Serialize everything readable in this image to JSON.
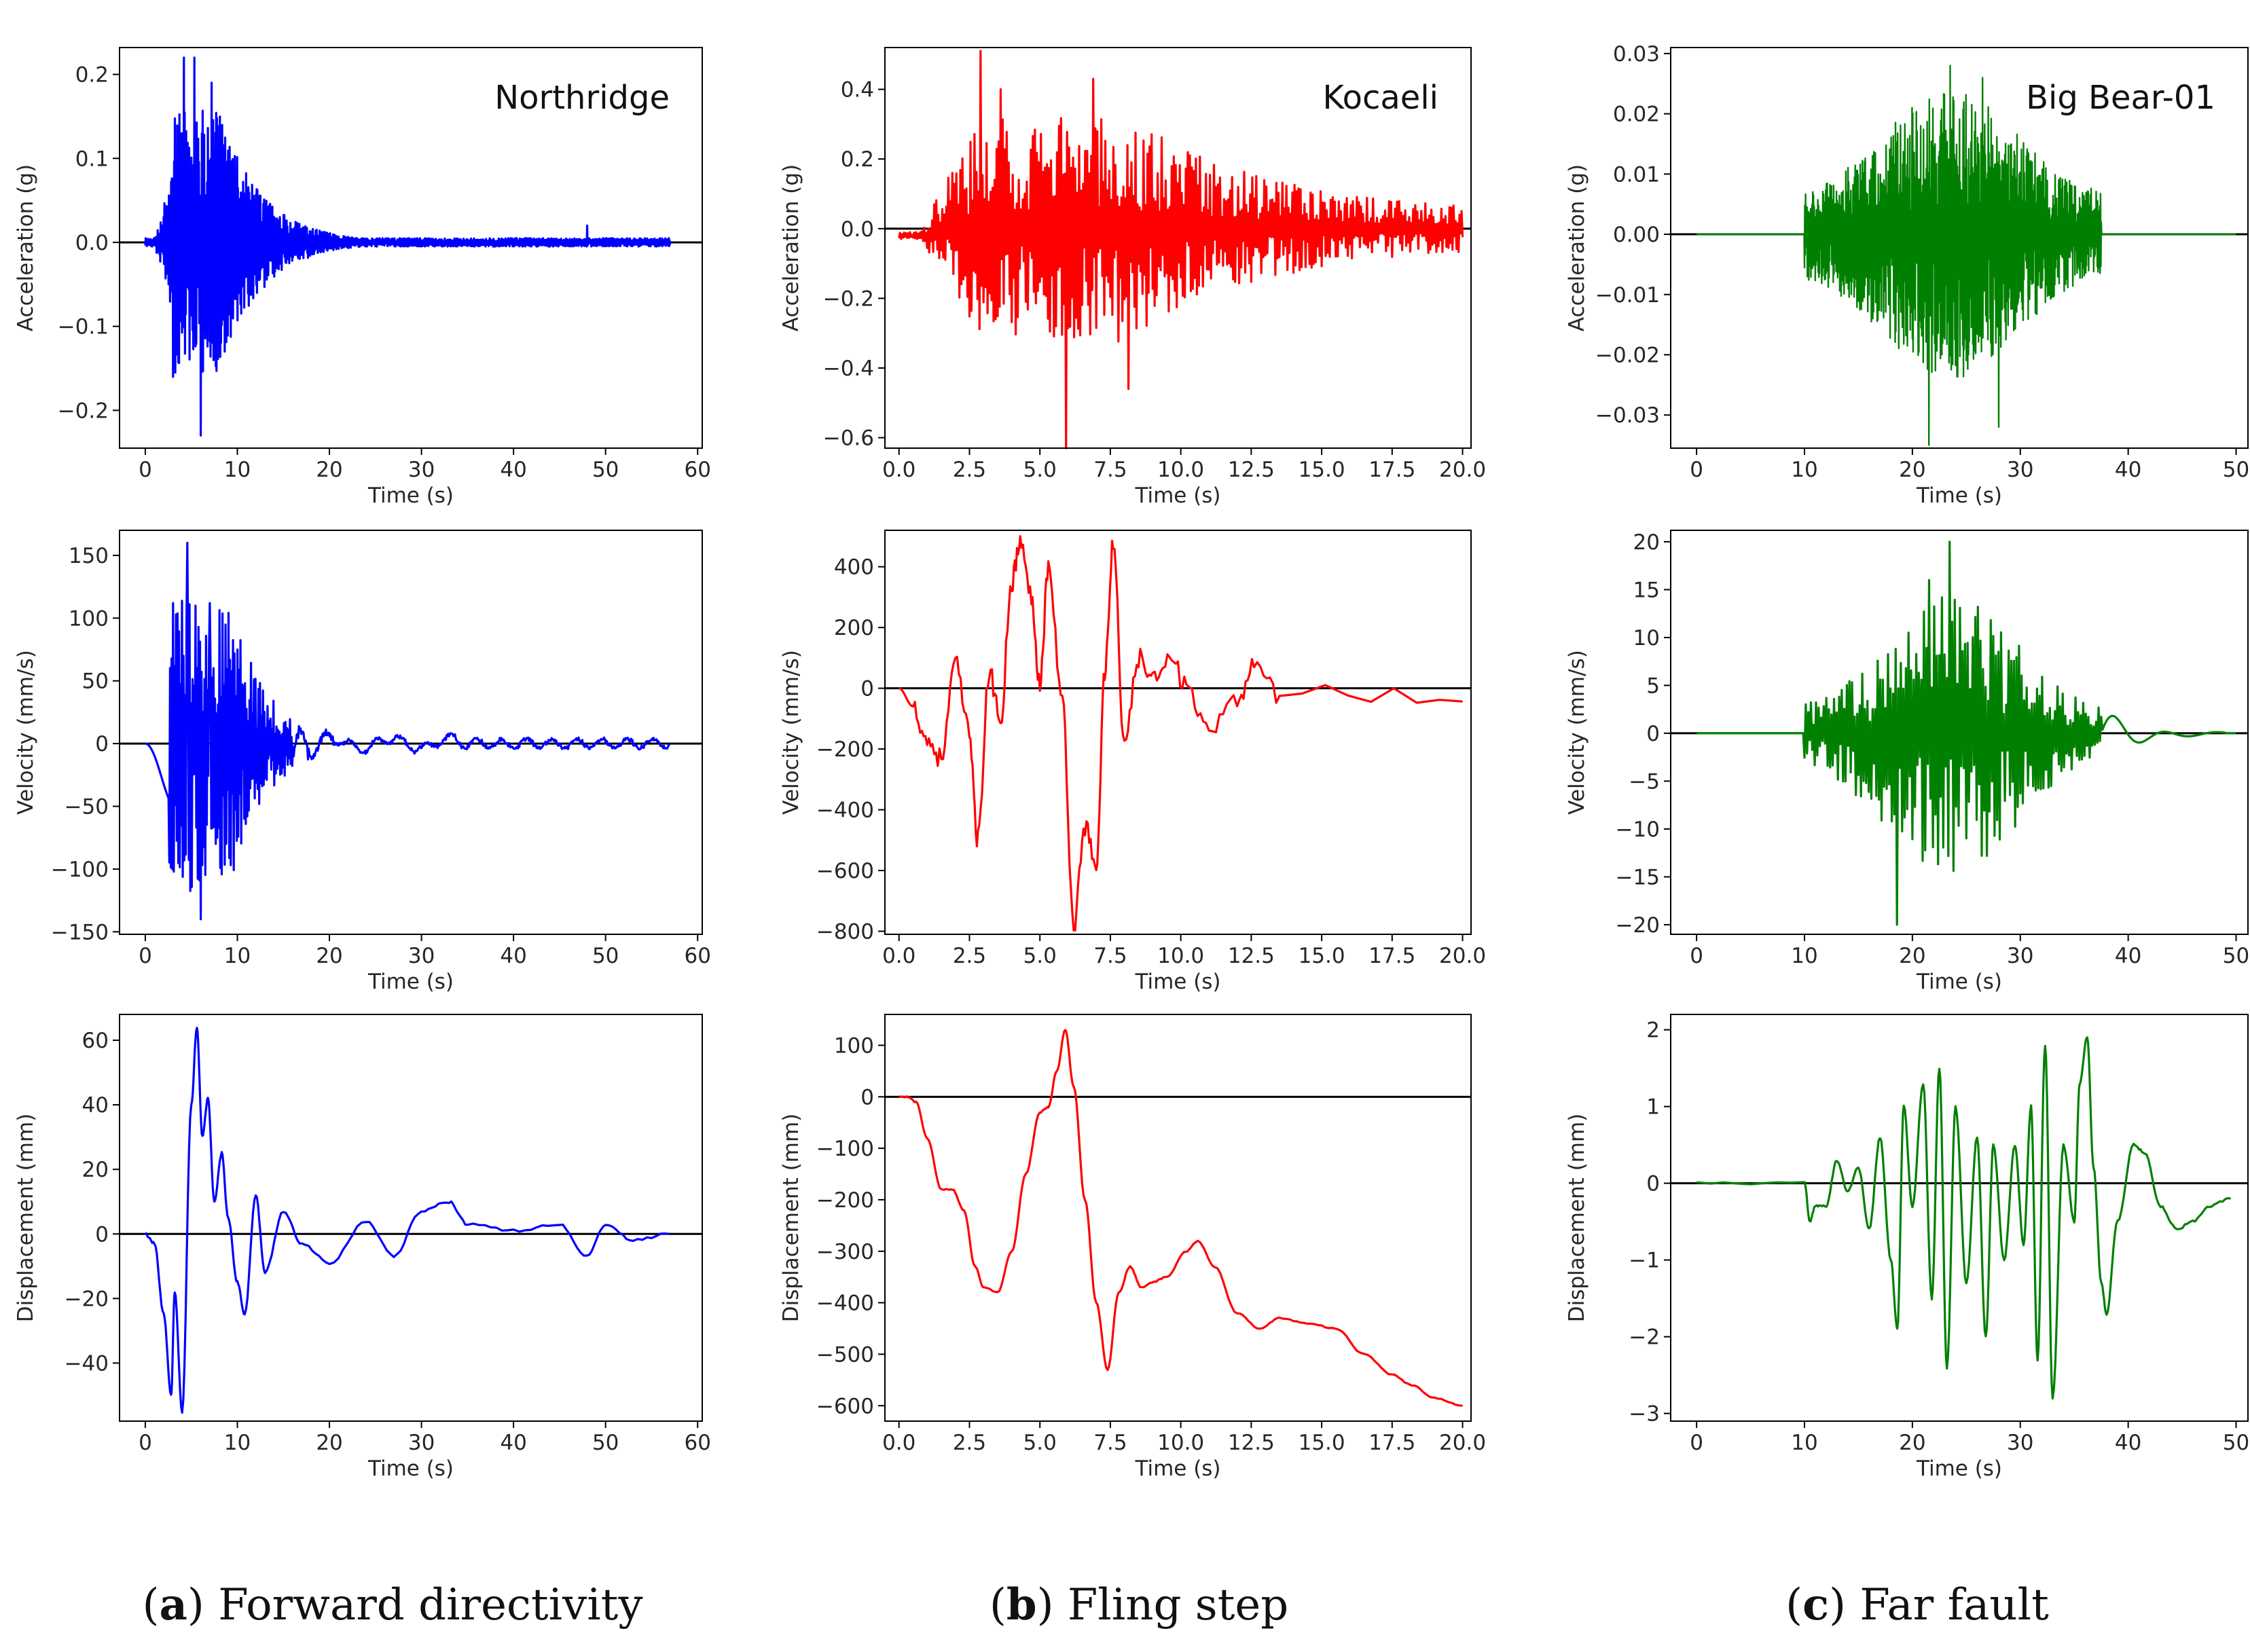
{
  "captions": [
    {
      "letter": "a",
      "text": " Forward directivity"
    },
    {
      "letter": "b",
      "text": " Fling step"
    },
    {
      "letter": "c",
      "text": " Far fault"
    }
  ],
  "colors": {
    "Northridge": "#0000ff",
    "Kocaeli": "#ff0000",
    "Big Bear-01": "#008000",
    "zero_line": "#000000"
  },
  "chart_data": [
    {
      "type": "line",
      "record": "Northridge",
      "title": "Northridge",
      "quantity": "acceleration",
      "xlabel": "Time (s)",
      "ylabel": "Acceleration (g)",
      "xlim": [
        -2.8,
        60.5
      ],
      "ylim": [
        -0.245,
        0.232
      ],
      "xticks": [
        0,
        10,
        20,
        30,
        40,
        50,
        60
      ],
      "yticks": [
        -0.2,
        -0.1,
        0.0,
        0.1,
        0.2
      ],
      "ytick_labels": [
        "−0.2",
        "−0.1",
        "0.0",
        "0.1",
        "0.2"
      ],
      "duration": 57,
      "peaks": [
        [
          4.2,
          0.22
        ],
        [
          5.3,
          0.22
        ],
        [
          6.0,
          -0.23
        ],
        [
          7.2,
          0.19
        ],
        [
          3.0,
          -0.16
        ],
        [
          48.0,
          0.02
        ]
      ],
      "series": [
        {
          "name": "Northridge",
          "color": "#0000ff"
        }
      ]
    },
    {
      "type": "line",
      "record": "Kocaeli",
      "title": "Kocaeli",
      "quantity": "acceleration",
      "xlabel": "Time (s)",
      "ylabel": "Acceleration (g)",
      "xlim": [
        -0.5,
        20.3
      ],
      "ylim": [
        -0.63,
        0.52
      ],
      "xticks": [
        0,
        2.5,
        5,
        7.5,
        10,
        12.5,
        15,
        17.5,
        20
      ],
      "xtick_labels": [
        "0.0",
        "2.5",
        "5.0",
        "7.5",
        "10.0",
        "12.5",
        "15.0",
        "17.5",
        "20.0"
      ],
      "yticks": [
        -0.6,
        -0.4,
        -0.2,
        0.0,
        0.2,
        0.4
      ],
      "ytick_labels": [
        "−0.6",
        "−0.4",
        "−0.2",
        "0.0",
        "0.2",
        "0.4"
      ],
      "duration": 20,
      "peaks": [
        [
          2.9,
          0.51
        ],
        [
          5.9,
          -0.63
        ],
        [
          6.9,
          0.43
        ],
        [
          3.6,
          0.4
        ],
        [
          8.1,
          -0.46
        ]
      ],
      "series": [
        {
          "name": "Kocaeli",
          "color": "#ff0000"
        }
      ]
    },
    {
      "type": "line",
      "record": "Big Bear-01",
      "title": "Big Bear-01",
      "quantity": "acceleration",
      "xlabel": "Time (s)",
      "ylabel": "Acceleration (g)",
      "xlim": [
        -2.4,
        51.1
      ],
      "ylim": [
        -0.0355,
        0.031
      ],
      "xticks": [
        0,
        10,
        20,
        30,
        40,
        50
      ],
      "yticks": [
        -0.03,
        -0.02,
        -0.01,
        0.0,
        0.01,
        0.02,
        0.03
      ],
      "ytick_labels": [
        "−0.03",
        "−0.02",
        "−0.01",
        "0.00",
        "0.01",
        "0.02",
        "0.03"
      ],
      "duration": 50,
      "start": 10,
      "end": 37.5,
      "peaks": [
        [
          23.5,
          0.028
        ],
        [
          21.5,
          -0.035
        ],
        [
          26.5,
          0.026
        ],
        [
          28,
          -0.032
        ]
      ],
      "series": [
        {
          "name": "Big Bear-01",
          "color": "#008000"
        }
      ]
    },
    {
      "type": "line",
      "record": "Northridge",
      "quantity": "velocity",
      "xlabel": "Time (s)",
      "ylabel": "Velocity (mm/s)",
      "xlim": [
        -2.8,
        60.5
      ],
      "ylim": [
        -152,
        170
      ],
      "xticks": [
        0,
        10,
        20,
        30,
        40,
        50,
        60
      ],
      "yticks": [
        -150,
        -100,
        -50,
        0,
        50,
        100,
        150
      ],
      "ytick_labels": [
        "−150",
        "−100",
        "−50",
        "0",
        "50",
        "100",
        "150"
      ],
      "duration": 57,
      "peaks": [
        [
          4.6,
          160
        ],
        [
          6.0,
          -140
        ],
        [
          7.0,
          112
        ],
        [
          3.3,
          103
        ],
        [
          4.2,
          -93
        ]
      ],
      "series": [
        {
          "name": "Northridge",
          "color": "#0000ff"
        }
      ]
    },
    {
      "type": "line",
      "record": "Kocaeli",
      "quantity": "velocity",
      "xlabel": "Time (s)",
      "ylabel": "Velocity (mm/s)",
      "xlim": [
        -0.5,
        20.3
      ],
      "ylim": [
        -810,
        520
      ],
      "xticks": [
        0,
        2.5,
        5,
        7.5,
        10,
        12.5,
        15,
        17.5,
        20
      ],
      "xtick_labels": [
        "0.0",
        "2.5",
        "5.0",
        "7.5",
        "10.0",
        "12.5",
        "15.0",
        "17.5",
        "20.0"
      ],
      "yticks": [
        -800,
        -600,
        -400,
        -200,
        0,
        200,
        400
      ],
      "ytick_labels": [
        "−800",
        "−600",
        "−400",
        "−200",
        "0",
        "200",
        "400"
      ],
      "duration": 20,
      "keypoints": [
        [
          0,
          0
        ],
        [
          0.5,
          -60
        ],
        [
          1,
          -170
        ],
        [
          1.5,
          -230
        ],
        [
          2,
          80
        ],
        [
          2.5,
          -150
        ],
        [
          2.8,
          -500
        ],
        [
          3.2,
          50
        ],
        [
          3.6,
          -100
        ],
        [
          4.0,
          350
        ],
        [
          4.3,
          480
        ],
        [
          4.7,
          300
        ],
        [
          5.0,
          20
        ],
        [
          5.3,
          400
        ],
        [
          5.8,
          -50
        ],
        [
          6.2,
          -780
        ],
        [
          6.6,
          -450
        ],
        [
          7.0,
          -600
        ],
        [
          7.3,
          50
        ],
        [
          7.6,
          480
        ],
        [
          8.0,
          -200
        ],
        [
          8.5,
          100
        ],
        [
          9.0,
          20
        ],
        [
          9.6,
          120
        ],
        [
          10.2,
          0
        ],
        [
          11.0,
          -150
        ],
        [
          12.0,
          -50
        ],
        [
          12.6,
          90
        ],
        [
          13.5,
          -20
        ],
        [
          20,
          -20
        ]
      ],
      "series": [
        {
          "name": "Kocaeli",
          "color": "#ff0000"
        }
      ]
    },
    {
      "type": "line",
      "record": "Big Bear-01",
      "quantity": "velocity",
      "xlabel": "Time (s)",
      "ylabel": "Velocity (mm/s)",
      "xlim": [
        -2.4,
        51.1
      ],
      "ylim": [
        -21,
        21.2
      ],
      "xticks": [
        0,
        10,
        20,
        30,
        40,
        50
      ],
      "yticks": [
        -20,
        -15,
        -10,
        -5,
        0,
        5,
        10,
        15,
        20
      ],
      "ytick_labels": [
        "−20",
        "−15",
        "−10",
        "−5",
        "0",
        "5",
        "10",
        "15",
        "20"
      ],
      "duration": 50,
      "start": 10,
      "end": 37.5,
      "peaks": [
        [
          23.3,
          20
        ],
        [
          18.5,
          -20
        ],
        [
          21.5,
          16
        ]
      ],
      "series": [
        {
          "name": "Big Bear-01",
          "color": "#008000"
        }
      ]
    },
    {
      "type": "line",
      "record": "Northridge",
      "quantity": "displacement",
      "xlabel": "Time (s)",
      "ylabel": "Displacement (mm)",
      "xlim": [
        -2.8,
        60.5
      ],
      "ylim": [
        -58,
        68
      ],
      "xticks": [
        0,
        10,
        20,
        30,
        40,
        50,
        60
      ],
      "yticks": [
        -40,
        -20,
        0,
        20,
        40,
        60
      ],
      "ytick_labels": [
        "−40",
        "−20",
        "0",
        "20",
        "40",
        "60"
      ],
      "duration": 57,
      "keypoints": [
        [
          0,
          0
        ],
        [
          1,
          -3
        ],
        [
          2,
          -25
        ],
        [
          2.8,
          -50
        ],
        [
          3.2,
          -18
        ],
        [
          4.0,
          -55
        ],
        [
          5.0,
          40
        ],
        [
          5.6,
          64
        ],
        [
          6.2,
          30
        ],
        [
          6.8,
          42
        ],
        [
          7.5,
          10
        ],
        [
          8.3,
          25
        ],
        [
          9.0,
          5
        ],
        [
          10.0,
          -15
        ],
        [
          10.8,
          -25
        ],
        [
          12,
          12
        ],
        [
          13,
          -12
        ],
        [
          15,
          7
        ],
        [
          17,
          -3
        ],
        [
          20,
          -9
        ],
        [
          24,
          4
        ],
        [
          27,
          -7
        ],
        [
          30,
          7
        ],
        [
          33,
          10
        ],
        [
          35,
          3
        ],
        [
          40,
          1
        ],
        [
          45,
          3
        ],
        [
          48,
          -7
        ],
        [
          50,
          3
        ],
        [
          53,
          -2
        ],
        [
          57,
          0
        ]
      ],
      "series": [
        {
          "name": "Northridge",
          "color": "#0000ff"
        }
      ]
    },
    {
      "type": "line",
      "record": "Kocaeli",
      "quantity": "displacement",
      "xlabel": "Time (s)",
      "ylabel": "Displacement (mm)",
      "xlim": [
        -0.5,
        20.3
      ],
      "ylim": [
        -630,
        160
      ],
      "xticks": [
        0,
        2.5,
        5,
        7.5,
        10,
        12.5,
        15,
        17.5,
        20
      ],
      "xtick_labels": [
        "0.0",
        "2.5",
        "5.0",
        "7.5",
        "10.0",
        "12.5",
        "15.0",
        "17.5",
        "20.0"
      ],
      "yticks": [
        -600,
        -500,
        -400,
        -300,
        -200,
        -100,
        0,
        100
      ],
      "ytick_labels": [
        "−600",
        "−500",
        "−400",
        "−300",
        "−200",
        "−100",
        "0",
        "100"
      ],
      "duration": 20,
      "keypoints": [
        [
          0,
          0
        ],
        [
          0.3,
          0
        ],
        [
          0.6,
          -10
        ],
        [
          1.0,
          -80
        ],
        [
          1.5,
          -180
        ],
        [
          1.9,
          -180
        ],
        [
          2.3,
          -220
        ],
        [
          2.7,
          -330
        ],
        [
          3.0,
          -370
        ],
        [
          3.5,
          -380
        ],
        [
          4.0,
          -300
        ],
        [
          4.5,
          -150
        ],
        [
          5.0,
          -30
        ],
        [
          5.3,
          -20
        ],
        [
          5.6,
          50
        ],
        [
          5.9,
          130
        ],
        [
          6.2,
          20
        ],
        [
          6.6,
          -200
        ],
        [
          7.0,
          -400
        ],
        [
          7.4,
          -530
        ],
        [
          7.8,
          -380
        ],
        [
          8.2,
          -330
        ],
        [
          8.6,
          -370
        ],
        [
          9.0,
          -360
        ],
        [
          9.5,
          -350
        ],
        [
          10.2,
          -300
        ],
        [
          10.6,
          -280
        ],
        [
          11.2,
          -330
        ],
        [
          12.0,
          -420
        ],
        [
          12.8,
          -450
        ],
        [
          13.5,
          -430
        ],
        [
          14.5,
          -440
        ],
        [
          15.5,
          -450
        ],
        [
          16.5,
          -500
        ],
        [
          17.5,
          -540
        ],
        [
          18.2,
          -560
        ],
        [
          19.0,
          -585
        ],
        [
          20.0,
          -600
        ]
      ],
      "series": [
        {
          "name": "Kocaeli",
          "color": "#ff0000"
        }
      ]
    },
    {
      "type": "line",
      "record": "Big Bear-01",
      "quantity": "displacement",
      "xlabel": "Time (s)",
      "ylabel": "Displacement (mm)",
      "xlim": [
        -2.4,
        51.1
      ],
      "ylim": [
        -3.1,
        2.2
      ],
      "xticks": [
        0,
        10,
        20,
        30,
        40,
        50
      ],
      "yticks": [
        -3,
        -2,
        -1,
        0,
        1,
        2
      ],
      "ytick_labels": [
        "−3",
        "−2",
        "−1",
        "0",
        "1",
        "2"
      ],
      "duration": 50,
      "keypoints": [
        [
          0,
          0
        ],
        [
          10.0,
          0
        ],
        [
          10.5,
          -0.5
        ],
        [
          11,
          -0.3
        ],
        [
          12,
          -0.3
        ],
        [
          13,
          0.3
        ],
        [
          14,
          -0.1
        ],
        [
          15,
          0.2
        ],
        [
          16,
          -0.6
        ],
        [
          17,
          0.6
        ],
        [
          18,
          -1.0
        ],
        [
          18.6,
          -1.9
        ],
        [
          19.2,
          1.0
        ],
        [
          20,
          -0.3
        ],
        [
          21,
          1.3
        ],
        [
          21.8,
          -1.5
        ],
        [
          22.5,
          1.5
        ],
        [
          23.2,
          -2.4
        ],
        [
          24,
          1.0
        ],
        [
          25,
          -1.3
        ],
        [
          26,
          0.6
        ],
        [
          26.8,
          -2.0
        ],
        [
          27.5,
          0.5
        ],
        [
          28.5,
          -1.0
        ],
        [
          29.5,
          0.5
        ],
        [
          30.3,
          -0.8
        ],
        [
          31,
          1.0
        ],
        [
          31.6,
          -2.3
        ],
        [
          32.3,
          1.8
        ],
        [
          33,
          -2.8
        ],
        [
          34,
          0.5
        ],
        [
          35,
          -0.5
        ],
        [
          35.5,
          1.3
        ],
        [
          36.2,
          1.9
        ],
        [
          36.8,
          0.2
        ],
        [
          37.5,
          -1.3
        ],
        [
          38,
          -1.7
        ],
        [
          39,
          -0.5
        ],
        [
          40.5,
          0.5
        ],
        [
          41.5,
          0.4
        ],
        [
          43,
          -0.3
        ],
        [
          44.5,
          -0.6
        ],
        [
          46,
          -0.5
        ],
        [
          47.5,
          -0.3
        ],
        [
          49.5,
          -0.2
        ]
      ],
      "series": [
        {
          "name": "Big Bear-01",
          "color": "#008000"
        }
      ]
    }
  ]
}
